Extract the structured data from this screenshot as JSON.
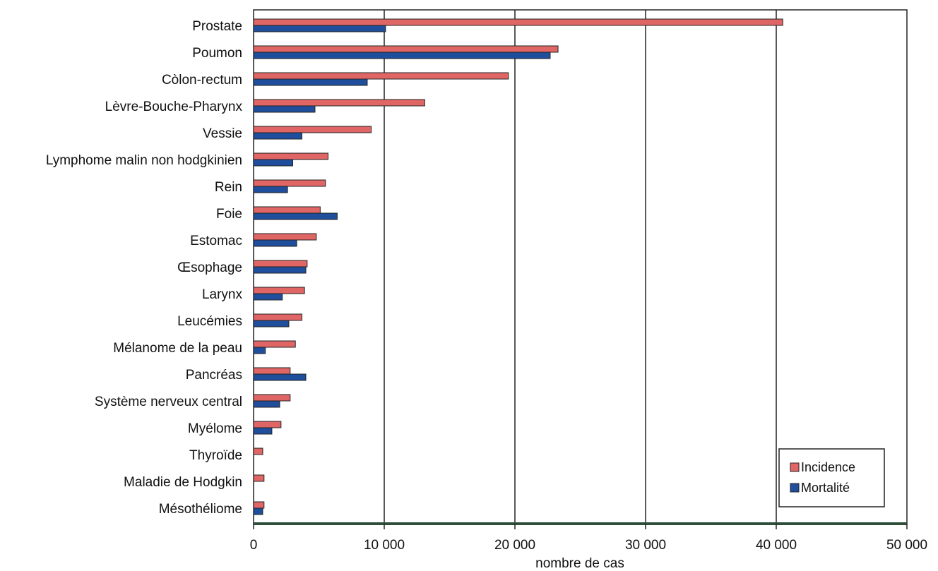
{
  "chart_data": {
    "type": "bar",
    "orientation": "horizontal",
    "title": "",
    "xlabel": "nombre de cas",
    "ylabel": "",
    "xlim": [
      0,
      50000
    ],
    "xticks": [
      0,
      10000,
      20000,
      30000,
      40000,
      50000
    ],
    "xtick_labels": [
      "0",
      "10 000",
      "20 000",
      "30 000",
      "40 000",
      "50 000"
    ],
    "grid": "vertical",
    "legend_position": "bottom-right",
    "categories": [
      "Prostate",
      "Poumon",
      "Còlon-rectum",
      "Lèvre-Bouche-Pharynx",
      "Vessie",
      "Lymphome malin non hodgkinien",
      "Rein",
      "Foie",
      "Estomac",
      "Œsophage",
      "Larynx",
      "Leucémies",
      "Mélanome de la peau",
      "Pancréas",
      "Système nerveux central",
      "Myélome",
      "Thyroïde",
      "Maladie de Hodgkin",
      "Mésothéliome"
    ],
    "series": [
      {
        "name": "Incidence",
        "color": "#e06666",
        "values": [
          40500,
          23300,
          19500,
          13100,
          9000,
          5700,
          5500,
          5100,
          4800,
          4100,
          3900,
          3700,
          3200,
          2800,
          2800,
          2100,
          700,
          800,
          800
        ]
      },
      {
        "name": "Mortalité",
        "color": "#1f4e9c",
        "values": [
          10100,
          22700,
          8700,
          4700,
          3700,
          3000,
          2600,
          6400,
          3300,
          4000,
          2200,
          2700,
          900,
          4000,
          2000,
          1400,
          0,
          0,
          700
        ]
      }
    ]
  }
}
